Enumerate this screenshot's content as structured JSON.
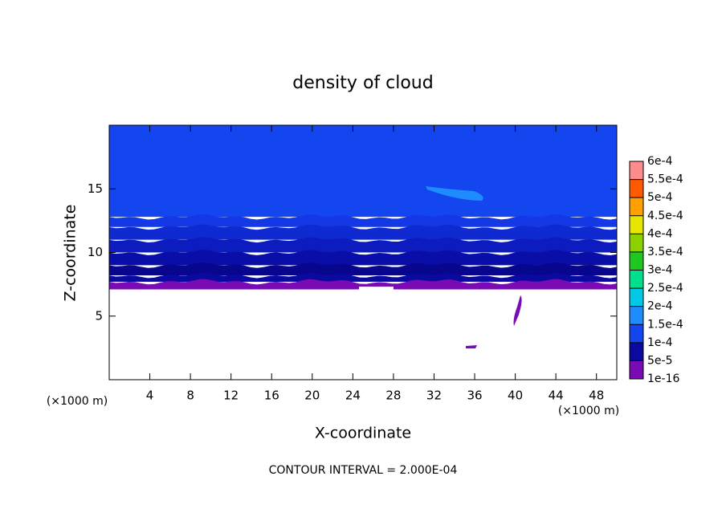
{
  "chart_data": {
    "type": "contour",
    "title": "density of cloud",
    "x_label": "X-coordinate",
    "y_label": "Z-coordinate",
    "axis_unit": "(×1000 m)",
    "footer": "CONTOUR INTERVAL = 2.000E-04",
    "xlim": [
      0,
      50
    ],
    "xticks": [
      4,
      8,
      12,
      16,
      20,
      24,
      28,
      32,
      36,
      40,
      44,
      48
    ],
    "ylim": [
      0,
      20
    ],
    "yticks": [
      5,
      10,
      15
    ],
    "colorbar": {
      "levels": [
        {
          "value": 1e-16,
          "label": "1e-16"
        },
        {
          "value": 5e-05,
          "label": "5e-5"
        },
        {
          "value": 0.0001,
          "label": "1e-4"
        },
        {
          "value": 0.00015,
          "label": "1.5e-4"
        },
        {
          "value": 0.0002,
          "label": "2e-4"
        },
        {
          "value": 0.00025,
          "label": "2.5e-4"
        },
        {
          "value": 0.0003,
          "label": "3e-4"
        },
        {
          "value": 0.00035,
          "label": "3.5e-4"
        },
        {
          "value": 0.0004,
          "label": "4e-4"
        },
        {
          "value": 0.00045,
          "label": "4.5e-4"
        },
        {
          "value": 0.0005,
          "label": "5e-4"
        },
        {
          "value": 0.00055,
          "label": "5.5e-4"
        },
        {
          "value": 0.0006,
          "label": "6e-4"
        }
      ],
      "colors": [
        "#7a0ab4",
        "#0a0aa0",
        "#1446f0",
        "#1e8cff",
        "#00c8e6",
        "#00e08c",
        "#1ec81e",
        "#8cd200",
        "#e6e600",
        "#ffa000",
        "#ff5a00",
        "#ff1e1e"
      ],
      "top_color": "#ff8c8c"
    }
  }
}
